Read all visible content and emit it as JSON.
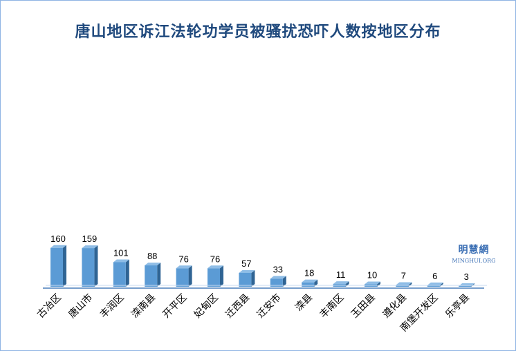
{
  "chart_data": {
    "type": "bar",
    "title": "唐山地区诉江法轮功学员被骚扰恐吓人数按地区分布",
    "categories": [
      "古冶区",
      "唐山市",
      "丰润区",
      "滦南县",
      "开平区",
      "妃甸区",
      "迁西县",
      "迁安市",
      "滦县",
      "丰南区",
      "玉田县",
      "遵化县",
      "南堡开发区",
      "乐亭县"
    ],
    "values": [
      160,
      159,
      101,
      88,
      76,
      76,
      57,
      33,
      18,
      11,
      10,
      7,
      6,
      3
    ],
    "xlabel": "",
    "ylabel": "",
    "ylim": [
      0,
      165
    ],
    "grid": false,
    "legend": "none",
    "bar_color": "#5b9bd5",
    "bar_side_color": "#2f6494",
    "bar_top_color": "#8fbde6",
    "axis_color": "#4a7ebb"
  },
  "watermark": {
    "chinese": "明慧網",
    "english": "MINGHUI.ORG"
  }
}
